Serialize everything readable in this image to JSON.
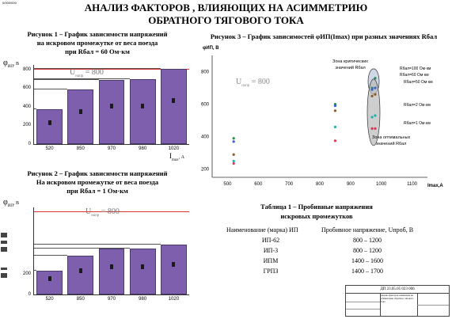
{
  "corner_code": "0/000/000",
  "title_line1": "АНАЛИЗ ФАКТОРОВ , ВЛИЯЮЩИХ НА АСИММЕТРИЮ",
  "title_line2": "ОБРАТНОГО ТЯГОВОГО ТОКА",
  "fig1": {
    "caption": [
      "Рисунок 1 – График зависимости напряжений",
      "на искровом промежутке от веса поезда",
      "при Rбал = 60 Ом·км"
    ],
    "ylabel": "φ",
    "ylabel_sub": "ИП",
    "ylabel_unit": ", В",
    "xlabel": "I",
    "xlabel_sub": "max",
    "xlabel_unit": ", А",
    "annot": "U",
    "annot_sub": "напр",
    "annot_val": "= 800",
    "chart_data": {
      "type": "bar",
      "categories": [
        "520",
        "850",
        "970",
        "980",
        "1020"
      ],
      "values": [
        370,
        590,
        690,
        700,
        810
      ],
      "yticks": [
        "0",
        "200",
        "400",
        "600",
        "800"
      ],
      "ylim": [
        0,
        850
      ],
      "threshold": 800
    }
  },
  "fig2": {
    "caption": [
      "Рисунок 2 – График зависимости напряжений",
      "На искровом промежутке от веса поезда",
      "при Rбал = 1 Ом·км"
    ],
    "ylabel": "φ",
    "ylabel_sub": "ИП",
    "ylabel_unit": ", В",
    "annot": "U",
    "annot_sub": "напр",
    "annot_val": "= 800",
    "chart_data": {
      "type": "bar",
      "categories": [
        "520",
        "850",
        "970",
        "980",
        "1020"
      ],
      "values": [
        235,
        375,
        450,
        450,
        490
      ],
      "yticks": [
        "0",
        "200"
      ],
      "ylim": [
        0,
        850
      ],
      "threshold": 800
    }
  },
  "fig3": {
    "caption": "Рисунок 3 – График зависимостей φИП(Imax) при разных значениях Rбал",
    "ylabel": "φИП, В",
    "xlabel": "Imax,А",
    "annot": "U",
    "annot_sub": "напр",
    "annot_val": "= 800",
    "zone_critical": [
      "Зона критических",
      "значений Rбал"
    ],
    "zone_optimal": [
      "Зона оптимальных",
      "значений Rбал"
    ],
    "legend": [
      "Rбал=100 Ом·км",
      "Rбал=60 Ом·км",
      "Rбал=50 Ом·км",
      "Rбал=2 Ом·км",
      "Rбал=1 Ом·км"
    ],
    "chart_data": {
      "type": "scatter",
      "xticks": [
        "500",
        "600",
        "700",
        "800",
        "900",
        "1000",
        "1100"
      ],
      "yticks": [
        "200",
        "400",
        "600",
        "800"
      ],
      "xlim": [
        450,
        1150
      ],
      "ylim": [
        150,
        900
      ],
      "series": [
        {
          "name": "Rбал=100 Ом·км",
          "color": "#2e8b57",
          "x": [
            520,
            850,
            970,
            980
          ],
          "y": [
            390,
            600,
            700,
            760
          ]
        },
        {
          "name": "Rбал=60 Ом·км",
          "color": "#3a5fcd",
          "x": [
            520,
            850,
            970,
            980
          ],
          "y": [
            370,
            590,
            690,
            700
          ]
        },
        {
          "name": "Rбал=50 Ом·км",
          "color": "#8b5a2b",
          "x": [
            520,
            850,
            970,
            980
          ],
          "y": [
            290,
            560,
            650,
            660
          ]
        },
        {
          "name": "Rбал=2 Ом·км",
          "color": "#20b2aa",
          "x": [
            520,
            850,
            970,
            980
          ],
          "y": [
            250,
            460,
            520,
            530
          ]
        },
        {
          "name": "Rбал=1 Ом·км",
          "color": "#d2385a",
          "x": [
            520,
            850,
            970,
            980
          ],
          "y": [
            235,
            375,
            450,
            450
          ]
        }
      ]
    }
  },
  "table": {
    "caption": [
      "Таблица 1 – Пробивные напряжения",
      "искровых промежутков"
    ],
    "headers": [
      "Наименование (марка) ИП",
      "Пробивное напряжение, Uпроб, В"
    ],
    "rows": [
      [
        "ИП-62",
        "800 – 1200"
      ],
      [
        "ИП-3",
        "800 – 1200"
      ],
      [
        "ИПМ",
        "1400 – 1600"
      ],
      [
        "ГРПЗ",
        "1400 – 1700"
      ]
    ]
  },
  "stamp": {
    "code": "ДП  23.05.05  023  006",
    "title": "Анализ факторов, влияющих на асимметрию обратного тягового тока"
  }
}
